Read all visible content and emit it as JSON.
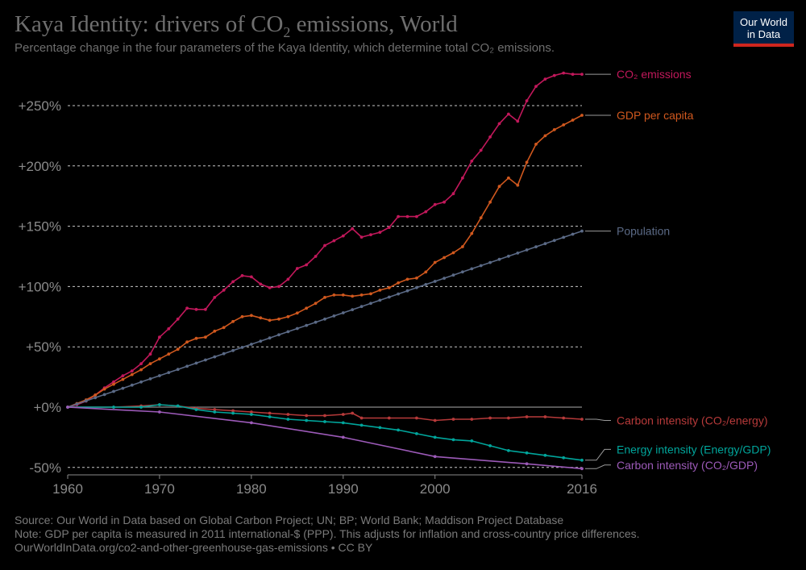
{
  "header": {
    "title_main": "Kaya Identity: drivers of CO",
    "title_sub": "2",
    "title_rest": " emissions, World",
    "subtitle": "Percentage change in the four parameters of the Kaya Identity, which determine total CO₂ emissions."
  },
  "logo": {
    "line1": "Our World",
    "line2": "in Data"
  },
  "footer": {
    "source": "Source: Our World in Data based on Global Carbon Project; UN; BP; World Bank; Maddison Project Database",
    "note": "Note: GDP per capita is measured in 2011 international-$ (PPP). This adjusts for inflation and cross-country price differences.",
    "url": "OurWorldInData.org/co2-and-other-greenhouse-gas-emissions • CC BY"
  },
  "chart_data": {
    "type": "line",
    "title": "Kaya Identity: drivers of CO₂ emissions, World",
    "xlabel": "",
    "ylabel": "",
    "xlim": [
      1960,
      2016
    ],
    "ylim": [
      -50,
      275
    ],
    "x_ticks": [
      {
        "value": 1960,
        "label": "1960"
      },
      {
        "value": 1970,
        "label": "1970"
      },
      {
        "value": 1980,
        "label": "1980"
      },
      {
        "value": 1990,
        "label": "1990"
      },
      {
        "value": 2000,
        "label": "2000"
      },
      {
        "value": 2016,
        "label": "2016"
      }
    ],
    "y_ticks": [
      {
        "value": -50,
        "label": "-50%"
      },
      {
        "value": 0,
        "label": "+0%"
      },
      {
        "value": 50,
        "label": "+50%"
      },
      {
        "value": 100,
        "label": "+100%"
      },
      {
        "value": 150,
        "label": "+150%"
      },
      {
        "value": 200,
        "label": "+200%"
      },
      {
        "value": 250,
        "label": "+250%"
      }
    ],
    "grid": true,
    "series": [
      {
        "name": "CO₂ emissions",
        "color": "#c2185b",
        "markers": true,
        "x": [
          1960,
          1961,
          1962,
          1963,
          1964,
          1965,
          1966,
          1967,
          1968,
          1969,
          1970,
          1971,
          1972,
          1973,
          1974,
          1975,
          1976,
          1977,
          1978,
          1979,
          1980,
          1981,
          1982,
          1983,
          1984,
          1985,
          1986,
          1987,
          1988,
          1989,
          1990,
          1991,
          1992,
          1993,
          1994,
          1995,
          1996,
          1997,
          1998,
          1999,
          2000,
          2001,
          2002,
          2003,
          2004,
          2005,
          2006,
          2007,
          2008,
          2009,
          2010,
          2011,
          2012,
          2013,
          2014,
          2015,
          2016
        ],
        "values": [
          0,
          2,
          5,
          10,
          16,
          21,
          26,
          30,
          36,
          44,
          58,
          65,
          73,
          82,
          81,
          81,
          91,
          97,
          104,
          109,
          108,
          102,
          99,
          100,
          106,
          115,
          118,
          125,
          134,
          138,
          142,
          148,
          141,
          143,
          145,
          149,
          158,
          158,
          158,
          162,
          168,
          170,
          177,
          190,
          204,
          213,
          224,
          235,
          243,
          237,
          254,
          266,
          272,
          275,
          277,
          276,
          276
        ]
      },
      {
        "name": "GDP per capita",
        "color": "#d0581e",
        "markers": true,
        "x": [
          1960,
          1961,
          1962,
          1963,
          1964,
          1965,
          1966,
          1967,
          1968,
          1969,
          1970,
          1971,
          1972,
          1973,
          1974,
          1975,
          1976,
          1977,
          1978,
          1979,
          1980,
          1981,
          1982,
          1983,
          1984,
          1985,
          1986,
          1987,
          1988,
          1989,
          1990,
          1991,
          1992,
          1993,
          1994,
          1995,
          1996,
          1997,
          1998,
          1999,
          2000,
          2001,
          2002,
          2003,
          2004,
          2005,
          2006,
          2007,
          2008,
          2009,
          2010,
          2011,
          2012,
          2013,
          2014,
          2015,
          2016
        ],
        "values": [
          0,
          3,
          6,
          10,
          15,
          19,
          23,
          27,
          31,
          36,
          40,
          44,
          48,
          54,
          57,
          58,
          63,
          66,
          71,
          75,
          76,
          74,
          72,
          73,
          75,
          78,
          82,
          86,
          91,
          93,
          93,
          92,
          93,
          94,
          97,
          99,
          103,
          106,
          107,
          112,
          120,
          124,
          128,
          133,
          144,
          157,
          170,
          183,
          190,
          184,
          203,
          218,
          225,
          230,
          234,
          238,
          242
        ]
      },
      {
        "name": "Population",
        "color": "#5b6a86",
        "markers": true,
        "linear": true,
        "x": [
          1960,
          2016
        ],
        "values": [
          0,
          146
        ]
      },
      {
        "name": "Carbon intensity (CO₂/energy)",
        "color": "#b73a3a",
        "markers": true,
        "x": [
          1960,
          1965,
          1968,
          1970,
          1972,
          1974,
          1976,
          1978,
          1980,
          1982,
          1984,
          1986,
          1988,
          1990,
          1991,
          1992,
          1995,
          1998,
          2000,
          2002,
          2004,
          2006,
          2008,
          2010,
          2012,
          2014,
          2016
        ],
        "values": [
          0,
          0,
          1,
          2,
          1,
          -1,
          -2,
          -3,
          -4,
          -5,
          -6,
          -7,
          -7,
          -6,
          -5,
          -9,
          -9,
          -9,
          -11,
          -10,
          -10,
          -9,
          -9,
          -8,
          -8,
          -9,
          -10
        ]
      },
      {
        "name": "Energy intensity (Energy/GDP)",
        "color": "#00a59b",
        "markers": true,
        "x": [
          1960,
          1965,
          1968,
          1970,
          1972,
          1974,
          1976,
          1978,
          1980,
          1982,
          1984,
          1986,
          1988,
          1990,
          1992,
          1994,
          1996,
          1998,
          2000,
          2002,
          2004,
          2006,
          2008,
          2010,
          2012,
          2014,
          2016
        ],
        "values": [
          0,
          0,
          0,
          2,
          1,
          -2,
          -4,
          -5,
          -6,
          -8,
          -10,
          -11,
          -12,
          -13,
          -15,
          -17,
          -19,
          -22,
          -25,
          -27,
          -28,
          -32,
          -36,
          -38,
          -40,
          -42,
          -44
        ]
      },
      {
        "name": "Carbon intensity (CO₂/GDP)",
        "color": "#9c5ab8",
        "markers": true,
        "x": [
          1960,
          1970,
          1980,
          1990,
          2000,
          2010,
          2016
        ],
        "values": [
          0,
          -4,
          -13,
          -25,
          -41,
          -47,
          -51
        ]
      }
    ],
    "legend": [
      {
        "label": "CO₂ emissions",
        "y_value": 276,
        "color": "#c2185b"
      },
      {
        "label": "GDP per capita",
        "y_value": 242,
        "color": "#d0581e"
      },
      {
        "label": "Population",
        "y_value": 146,
        "color": "#5b6a86"
      },
      {
        "label": "Carbon intensity (CO₂/energy)",
        "y_value": -11,
        "color": "#b73a3a"
      },
      {
        "label": "Energy intensity (Energy/GDP)",
        "y_value": -35,
        "color": "#00a59b"
      },
      {
        "label": "Carbon intensity (CO₂/GDP)",
        "y_value": -48,
        "color": "#9c5ab8"
      }
    ]
  }
}
